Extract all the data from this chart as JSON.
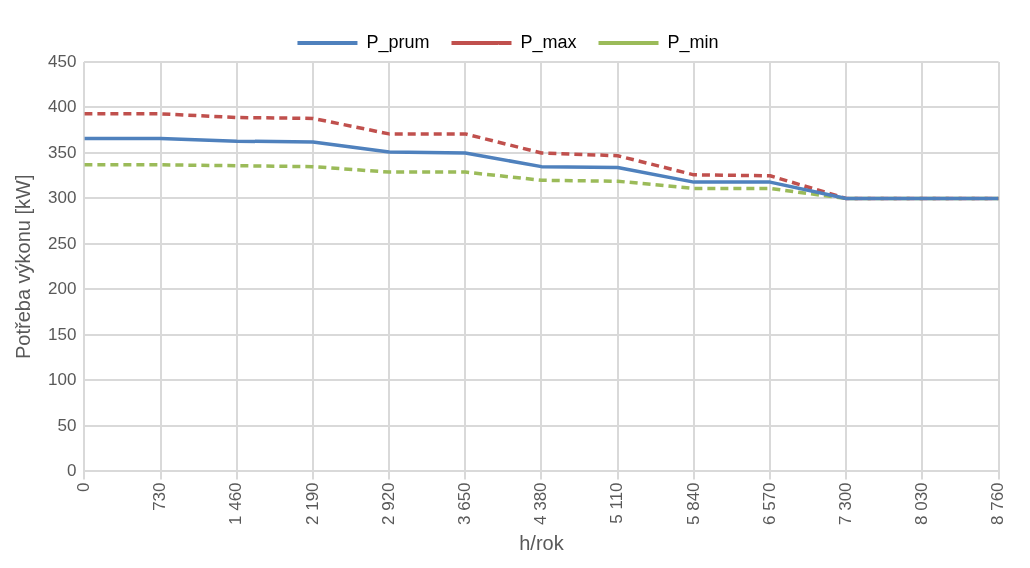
{
  "chart_data": {
    "type": "line",
    "xlabel": "h/rok",
    "ylabel": "Potřeba výkonu [kW]",
    "x": [
      0,
      730,
      1460,
      2190,
      2920,
      3650,
      4380,
      5110,
      5840,
      6570,
      7300,
      8030,
      8760
    ],
    "series": [
      {
        "name": "P_prum",
        "color": "#4f81bd",
        "line_style": "solid",
        "values": [
          366,
          366,
          363,
          362,
          351,
          350,
          335,
          334,
          318,
          318,
          300,
          300,
          300
        ]
      },
      {
        "name": "P_max",
        "color": "#c0504d",
        "line_style": "dashed",
        "values": [
          393,
          393,
          389,
          388,
          371,
          371,
          350,
          347,
          326,
          325,
          300,
          300,
          300
        ]
      },
      {
        "name": "P_min",
        "color": "#9bbb59",
        "line_style": "dashed",
        "values": [
          337,
          337,
          336,
          335,
          329,
          329,
          320,
          319,
          311,
          311,
          300,
          300,
          300
        ]
      }
    ],
    "xlim": [
      0,
      8760
    ],
    "xticks": [
      0,
      {
        "value": 730,
        "label": "730"
      },
      {
        "value": 1460,
        "label": "1 460"
      },
      {
        "value": 2190,
        "label": "2 190"
      },
      {
        "value": 2920,
        "label": "2 920"
      },
      {
        "value": 3650,
        "label": "3 650"
      },
      {
        "value": 4380,
        "label": "4 380"
      },
      {
        "value": 5110,
        "label": "5 110"
      },
      {
        "value": 5840,
        "label": "5 840"
      },
      {
        "value": 6570,
        "label": "6 570"
      },
      {
        "value": 7300,
        "label": "7 300"
      },
      {
        "value": 8030,
        "label": "8 030"
      },
      {
        "value": 8760,
        "label": "8 760"
      }
    ],
    "ylim": [
      0,
      450
    ],
    "yticks": [
      0,
      50,
      100,
      150,
      200,
      250,
      300,
      350,
      400,
      450
    ],
    "grid": true,
    "legend": "top",
    "marker": "none"
  }
}
